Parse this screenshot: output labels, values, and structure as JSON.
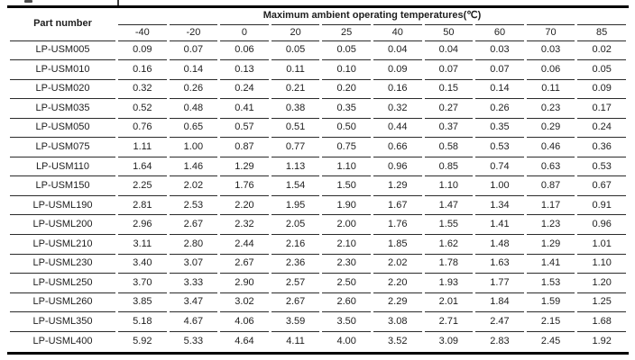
{
  "colors": {
    "bg": "#ffffff",
    "text": "#1e1e1e",
    "line": "#2a2a2a",
    "rule": "#000000"
  },
  "table": {
    "part_number_header": "Part number",
    "group_header": "Maximum ambient operating temperatures(℃)",
    "temp_columns": [
      "-40",
      "-20",
      "0",
      "20",
      "25",
      "40",
      "50",
      "60",
      "70",
      "85"
    ],
    "rows": [
      {
        "part": "LP-USM005",
        "values": [
          "0.09",
          "0.07",
          "0.06",
          "0.05",
          "0.05",
          "0.04",
          "0.04",
          "0.03",
          "0.03",
          "0.02"
        ]
      },
      {
        "part": "LP-USM010",
        "values": [
          "0.16",
          "0.14",
          "0.13",
          "0.11",
          "0.10",
          "0.09",
          "0.07",
          "0.07",
          "0.06",
          "0.05"
        ]
      },
      {
        "part": "LP-USM020",
        "values": [
          "0.32",
          "0.26",
          "0.24",
          "0.21",
          "0.20",
          "0.16",
          "0.15",
          "0.14",
          "0.11",
          "0.09"
        ]
      },
      {
        "part": "LP-USM035",
        "values": [
          "0.52",
          "0.48",
          "0.41",
          "0.38",
          "0.35",
          "0.32",
          "0.27",
          "0.26",
          "0.23",
          "0.17"
        ]
      },
      {
        "part": "LP-USM050",
        "values": [
          "0.76",
          "0.65",
          "0.57",
          "0.51",
          "0.50",
          "0.44",
          "0.37",
          "0.35",
          "0.29",
          "0.24"
        ]
      },
      {
        "part": "LP-USM075",
        "values": [
          "1.11",
          "1.00",
          "0.87",
          "0.77",
          "0.75",
          "0.66",
          "0.58",
          "0.53",
          "0.46",
          "0.36"
        ]
      },
      {
        "part": "LP-USM110",
        "values": [
          "1.64",
          "1.46",
          "1.29",
          "1.13",
          "1.10",
          "0.96",
          "0.85",
          "0.74",
          "0.63",
          "0.53"
        ]
      },
      {
        "part": "LP-USM150",
        "values": [
          "2.25",
          "2.02",
          "1.76",
          "1.54",
          "1.50",
          "1.29",
          "1.10",
          "1.00",
          "0.87",
          "0.67"
        ]
      },
      {
        "part": "LP-USML190",
        "values": [
          "2.81",
          "2.53",
          "2.20",
          "1.95",
          "1.90",
          "1.67",
          "1.47",
          "1.34",
          "1.17",
          "0.91"
        ]
      },
      {
        "part": "LP-USML200",
        "values": [
          "2.96",
          "2.67",
          "2.32",
          "2.05",
          "2.00",
          "1.76",
          "1.55",
          "1.41",
          "1.23",
          "0.96"
        ]
      },
      {
        "part": "LP-USML210",
        "values": [
          "3.11",
          "2.80",
          "2.44",
          "2.16",
          "2.10",
          "1.85",
          "1.62",
          "1.48",
          "1.29",
          "1.01"
        ]
      },
      {
        "part": "LP-USML230",
        "values": [
          "3.40",
          "3.07",
          "2.67",
          "2.36",
          "2.30",
          "2.02",
          "1.78",
          "1.63",
          "1.41",
          "1.10"
        ]
      },
      {
        "part": "LP-USML250",
        "values": [
          "3.70",
          "3.33",
          "2.90",
          "2.57",
          "2.50",
          "2.20",
          "1.93",
          "1.77",
          "1.53",
          "1.20"
        ]
      },
      {
        "part": "LP-USML260",
        "values": [
          "3.85",
          "3.47",
          "3.02",
          "2.67",
          "2.60",
          "2.29",
          "2.01",
          "1.84",
          "1.59",
          "1.25"
        ]
      },
      {
        "part": "LP-USML350",
        "values": [
          "5.18",
          "4.67",
          "4.06",
          "3.59",
          "3.50",
          "3.08",
          "2.71",
          "2.47",
          "2.15",
          "1.68"
        ]
      },
      {
        "part": "LP-USML400",
        "values": [
          "5.92",
          "5.33",
          "4.64",
          "4.11",
          "4.00",
          "3.52",
          "3.09",
          "2.83",
          "2.45",
          "1.92"
        ]
      }
    ]
  }
}
